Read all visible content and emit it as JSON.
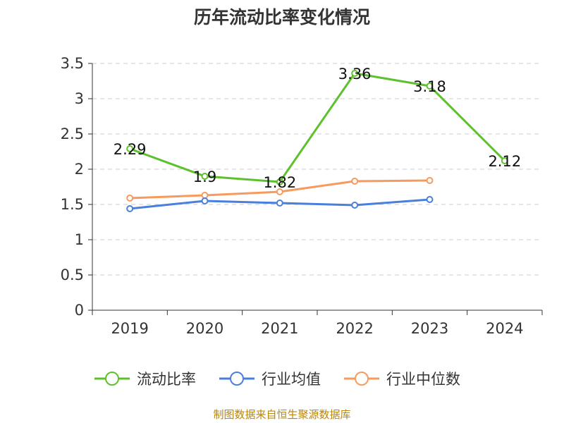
{
  "title": "历年流动比率变化情况",
  "source": "制图数据来自恒生聚源数据库",
  "colors": {
    "text": "#333333",
    "grid": "#cccccc",
    "axis": "#333333"
  },
  "chart_data": {
    "type": "line",
    "title": "历年流动比率变化情况",
    "xlabel": "",
    "ylabel": "",
    "categories": [
      "2019",
      "2020",
      "2021",
      "2022",
      "2023",
      "2024"
    ],
    "y_ticks": [
      "0",
      "0.5",
      "1",
      "1.5",
      "2",
      "2.5",
      "3",
      "3.5"
    ],
    "ylim": [
      0,
      3.5
    ],
    "grid": true,
    "legend_position": "bottom",
    "series": [
      {
        "name": "流动比率",
        "color": "#5dc12e",
        "values": [
          2.29,
          1.9,
          1.82,
          3.36,
          3.18,
          2.12
        ],
        "labels": [
          "2.29",
          "1.9",
          "1.82",
          "3.36",
          "3.18",
          "2.12"
        ]
      },
      {
        "name": "行业均值",
        "color": "#4a7fdb",
        "values": [
          1.44,
          1.55,
          1.52,
          1.49,
          1.57,
          null
        ]
      },
      {
        "name": "行业中位数",
        "color": "#f79a5e",
        "values": [
          1.59,
          1.63,
          1.68,
          1.83,
          1.84,
          null
        ]
      }
    ]
  }
}
